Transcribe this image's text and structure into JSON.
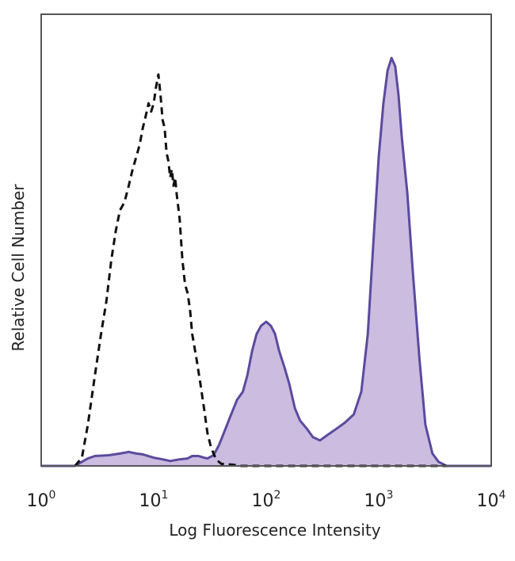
{
  "chart_data": {
    "type": "area",
    "xscale": "log",
    "xlim": [
      1,
      10000
    ],
    "ylim": [
      0,
      100
    ],
    "xlabel": "Log Fluorescence Intensity",
    "ylabel": "Relative Cell Number",
    "x_ticks": [
      {
        "base": "10",
        "exp": "0",
        "value": 1
      },
      {
        "base": "10",
        "exp": "1",
        "value": 10
      },
      {
        "base": "10",
        "exp": "2",
        "value": 100
      },
      {
        "base": "10",
        "exp": "3",
        "value": 1000
      },
      {
        "base": "10",
        "exp": "4",
        "value": 10000
      }
    ],
    "grid": false,
    "series": [
      {
        "style": "dashed-outline",
        "color": "#111111",
        "points": [
          [
            2.0,
            0
          ],
          [
            2.3,
            2
          ],
          [
            2.6,
            10
          ],
          [
            3.0,
            22
          ],
          [
            3.4,
            32
          ],
          [
            3.8,
            40
          ],
          [
            4.2,
            50
          ],
          [
            4.6,
            57
          ],
          [
            5.0,
            62
          ],
          [
            5.5,
            64
          ],
          [
            6.0,
            68
          ],
          [
            6.5,
            72
          ],
          [
            7.0,
            75
          ],
          [
            7.5,
            78
          ],
          [
            8.0,
            82
          ],
          [
            8.5,
            85
          ],
          [
            9.0,
            88
          ],
          [
            9.5,
            86
          ],
          [
            10.0,
            88
          ],
          [
            10.5,
            92
          ],
          [
            11.0,
            95
          ],
          [
            11.5,
            90
          ],
          [
            12.0,
            84
          ],
          [
            12.5,
            82
          ],
          [
            13.0,
            76
          ],
          [
            13.5,
            74
          ],
          [
            14.0,
            70
          ],
          [
            14.5,
            72
          ],
          [
            15.0,
            68
          ],
          [
            15.5,
            70
          ],
          [
            16.0,
            66
          ],
          [
            17.0,
            60
          ],
          [
            18.0,
            50
          ],
          [
            19.0,
            44
          ],
          [
            20.0,
            42
          ],
          [
            21.0,
            38
          ],
          [
            22.0,
            32
          ],
          [
            24.0,
            26
          ],
          [
            26.0,
            20
          ],
          [
            28.0,
            14
          ],
          [
            30.0,
            8
          ],
          [
            32.0,
            5
          ],
          [
            34.0,
            3
          ],
          [
            36.0,
            1.5
          ],
          [
            40.0,
            0.5
          ],
          [
            50.0,
            0.3
          ],
          [
            60.0,
            0
          ],
          [
            4000.0,
            0
          ]
        ]
      },
      {
        "style": "filled",
        "color": "#5b4a9e",
        "fill": "#cbbce0",
        "points": [
          [
            1.0,
            0
          ],
          [
            2.0,
            0
          ],
          [
            2.3,
            1
          ],
          [
            2.6,
            1.8
          ],
          [
            3.0,
            2.4
          ],
          [
            4.0,
            2.6
          ],
          [
            5.0,
            3.0
          ],
          [
            6.0,
            3.4
          ],
          [
            7.0,
            3.0
          ],
          [
            8.0,
            2.8
          ],
          [
            10.0,
            2.0
          ],
          [
            12.0,
            1.6
          ],
          [
            14.0,
            1.2
          ],
          [
            17.0,
            1.6
          ],
          [
            20.0,
            1.8
          ],
          [
            22.0,
            2.4
          ],
          [
            25.0,
            2.4
          ],
          [
            28.0,
            2.0
          ],
          [
            30.0,
            1.8
          ],
          [
            34.0,
            2.6
          ],
          [
            38.0,
            5.0
          ],
          [
            42.0,
            8.0
          ],
          [
            48.0,
            12.0
          ],
          [
            55.0,
            16.0
          ],
          [
            62.0,
            18.0
          ],
          [
            68.0,
            22.0
          ],
          [
            75.0,
            28.0
          ],
          [
            82.0,
            32.0
          ],
          [
            90.0,
            34.0
          ],
          [
            100.0,
            35.0
          ],
          [
            110.0,
            34.0
          ],
          [
            120.0,
            32.0
          ],
          [
            130.0,
            28.0
          ],
          [
            145.0,
            24.0
          ],
          [
            160.0,
            20.0
          ],
          [
            180.0,
            14.0
          ],
          [
            200.0,
            11.0
          ],
          [
            230.0,
            9.0
          ],
          [
            260.0,
            7.0
          ],
          [
            300.0,
            6.2
          ],
          [
            350.0,
            7.5
          ],
          [
            420.0,
            9.0
          ],
          [
            500.0,
            10.5
          ],
          [
            600.0,
            12.5
          ],
          [
            700.0,
            18.0
          ],
          [
            800.0,
            32.0
          ],
          [
            900.0,
            55.0
          ],
          [
            1000.0,
            75.0
          ],
          [
            1100.0,
            88.0
          ],
          [
            1200.0,
            96.0
          ],
          [
            1300.0,
            99.0
          ],
          [
            1400.0,
            97.0
          ],
          [
            1500.0,
            90.0
          ],
          [
            1600.0,
            80.0
          ],
          [
            1800.0,
            66.0
          ],
          [
            2000.0,
            48.0
          ],
          [
            2300.0,
            26.0
          ],
          [
            2600.0,
            10.0
          ],
          [
            3000.0,
            3.0
          ],
          [
            3400.0,
            1.0
          ],
          [
            4000.0,
            0
          ],
          [
            10000.0,
            0
          ]
        ]
      }
    ]
  }
}
